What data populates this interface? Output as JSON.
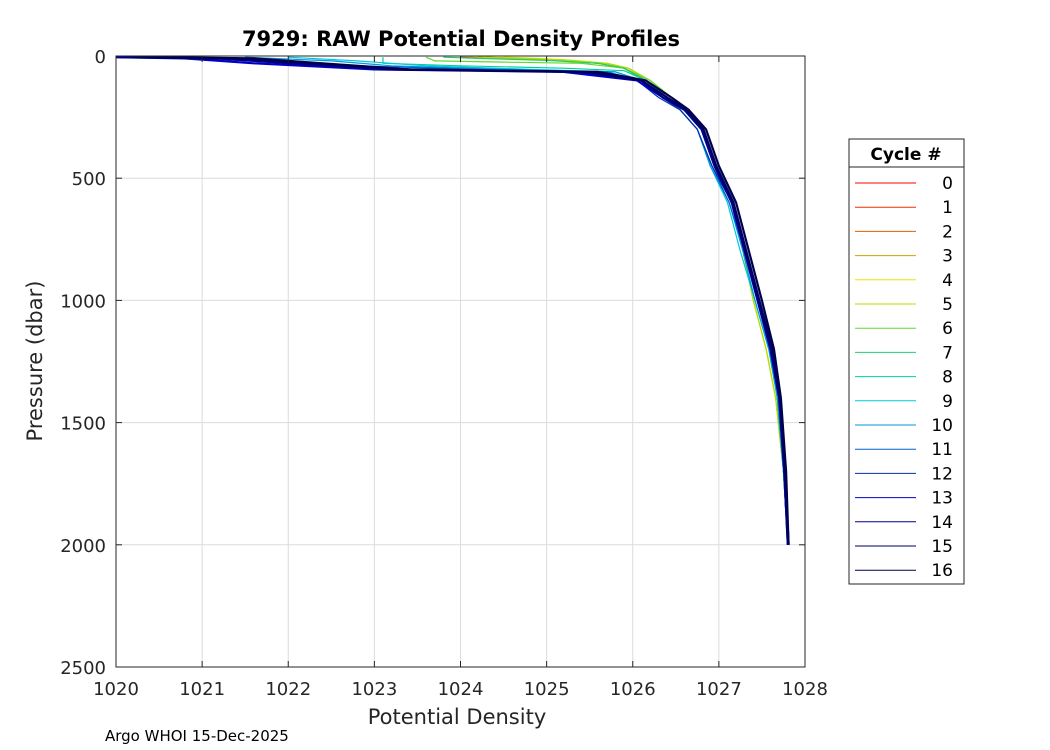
{
  "chart_data": {
    "type": "line",
    "title": "7929: RAW Potential Density Profiles",
    "xlabel": "Potential Density",
    "ylabel": "Pressure (dbar)",
    "xlim": [
      1020,
      1028
    ],
    "ylim": [
      0,
      2500
    ],
    "y_reversed": true,
    "grid": true,
    "x_ticks": [
      "1020",
      "1021",
      "1022",
      "1023",
      "1024",
      "1025",
      "1026",
      "1027",
      "1028"
    ],
    "y_ticks": [
      "0",
      "500",
      "1000",
      "1500",
      "2000",
      "2500"
    ],
    "legend": {
      "title": "Cycle #",
      "placement": "right-outside"
    },
    "footer": "Argo WHOI 15-Dec-2025",
    "series": [
      {
        "name": "0",
        "color": "#ff0000",
        "x": [
          1024.2,
          1024.6,
          1025.2,
          1025.6,
          1025.9,
          1026.15,
          1026.4,
          1026.6,
          1026.8,
          1026.95,
          1027.15,
          1027.3,
          1027.45,
          1027.6,
          1027.68,
          1027.75,
          1027.8
        ],
        "y": [
          5,
          10,
          18,
          30,
          50,
          100,
          170,
          220,
          300,
          450,
          600,
          800,
          1000,
          1200,
          1400,
          1700,
          2000
        ]
      },
      {
        "name": "1",
        "color": "#f03000",
        "x": [
          1024.0,
          1024.5,
          1025.1,
          1025.6,
          1025.9,
          1026.15,
          1026.4,
          1026.6,
          1026.8,
          1026.95,
          1027.15,
          1027.3,
          1027.45,
          1027.6,
          1027.68,
          1027.75,
          1027.8
        ],
        "y": [
          5,
          10,
          18,
          30,
          50,
          100,
          170,
          220,
          300,
          450,
          600,
          800,
          1000,
          1200,
          1400,
          1700,
          2000
        ]
      },
      {
        "name": "2",
        "color": "#e06000",
        "x": [
          1024.3,
          1024.7,
          1025.2,
          1025.7,
          1025.95,
          1026.2,
          1026.45,
          1026.6,
          1026.8,
          1026.95,
          1027.15,
          1027.3,
          1027.45,
          1027.6,
          1027.68,
          1027.75,
          1027.8
        ],
        "y": [
          5,
          10,
          18,
          30,
          50,
          100,
          170,
          220,
          300,
          450,
          600,
          800,
          1000,
          1200,
          1400,
          1700,
          2000
        ]
      },
      {
        "name": "3",
        "color": "#d0a000",
        "x": [
          1024.1,
          1024.6,
          1025.1,
          1025.6,
          1025.9,
          1026.15,
          1026.45,
          1026.6,
          1026.8,
          1026.95,
          1027.15,
          1027.28,
          1027.4,
          1027.55,
          1027.66,
          1027.75,
          1027.8
        ],
        "y": [
          5,
          10,
          18,
          30,
          50,
          100,
          170,
          220,
          300,
          450,
          600,
          800,
          1000,
          1200,
          1400,
          1700,
          2000
        ]
      },
      {
        "name": "4",
        "color": "#e8e800",
        "x": [
          1024.5,
          1024.9,
          1025.3,
          1025.7,
          1025.95,
          1026.2,
          1026.45,
          1026.6,
          1026.8,
          1026.95,
          1027.15,
          1027.28,
          1027.4,
          1027.55,
          1027.66,
          1027.75,
          1027.8
        ],
        "y": [
          5,
          10,
          18,
          30,
          50,
          100,
          170,
          220,
          300,
          450,
          600,
          800,
          1000,
          1200,
          1400,
          1700,
          2000
        ]
      },
      {
        "name": "5",
        "color": "#b0e000",
        "x": [
          1024.2,
          1024.8,
          1025.3,
          1025.7,
          1025.95,
          1026.2,
          1026.45,
          1026.6,
          1026.8,
          1026.95,
          1027.15,
          1027.28,
          1027.4,
          1027.55,
          1027.66,
          1027.75,
          1027.8
        ],
        "y": [
          5,
          10,
          18,
          30,
          50,
          100,
          170,
          220,
          300,
          450,
          600,
          800,
          1000,
          1200,
          1400,
          1700,
          2000
        ]
      },
      {
        "name": "6",
        "color": "#60d830",
        "x": [
          1023.6,
          1023.7,
          1024.5,
          1025.4,
          1025.9,
          1026.2,
          1026.45,
          1026.6,
          1026.8,
          1026.95,
          1027.15,
          1027.3,
          1027.45,
          1027.6,
          1027.68,
          1027.75,
          1027.8
        ],
        "y": [
          5,
          20,
          25,
          30,
          50,
          100,
          170,
          220,
          300,
          450,
          600,
          800,
          1000,
          1200,
          1400,
          1700,
          2000
        ]
      },
      {
        "name": "7",
        "color": "#20d070",
        "x": [
          1023.8,
          1024.2,
          1025.0,
          1025.6,
          1025.9,
          1026.15,
          1026.45,
          1026.6,
          1026.8,
          1026.95,
          1027.15,
          1027.3,
          1027.45,
          1027.6,
          1027.68,
          1027.75,
          1027.8
        ],
        "y": [
          5,
          10,
          18,
          30,
          50,
          100,
          170,
          220,
          300,
          450,
          600,
          800,
          1000,
          1200,
          1400,
          1700,
          2000
        ]
      },
      {
        "name": "8",
        "color": "#00d0a0",
        "x": [
          1023.1,
          1023.1,
          1024.0,
          1025.2,
          1025.9,
          1026.15,
          1026.4,
          1026.6,
          1026.8,
          1026.95,
          1027.15,
          1027.3,
          1027.45,
          1027.6,
          1027.68,
          1027.75,
          1027.8
        ],
        "y": [
          5,
          30,
          40,
          50,
          60,
          100,
          170,
          220,
          300,
          450,
          600,
          800,
          1000,
          1200,
          1400,
          1700,
          2000
        ]
      },
      {
        "name": "9",
        "color": "#00c8d8",
        "x": [
          1022.0,
          1022.8,
          1023.6,
          1024.8,
          1025.8,
          1026.1,
          1026.35,
          1026.55,
          1026.75,
          1026.9,
          1027.1,
          1027.25,
          1027.42,
          1027.58,
          1027.68,
          1027.75,
          1027.8
        ],
        "y": [
          5,
          20,
          40,
          55,
          65,
          100,
          170,
          220,
          300,
          450,
          600,
          800,
          1000,
          1200,
          1400,
          1700,
          2000
        ]
      },
      {
        "name": "10",
        "color": "#0098e0",
        "x": [
          1021.5,
          1022.5,
          1023.2,
          1024.5,
          1025.8,
          1026.1,
          1026.35,
          1026.55,
          1026.75,
          1026.9,
          1027.12,
          1027.28,
          1027.42,
          1027.58,
          1027.68,
          1027.75,
          1027.8
        ],
        "y": [
          5,
          20,
          40,
          55,
          65,
          100,
          170,
          220,
          300,
          450,
          600,
          800,
          1000,
          1200,
          1400,
          1700,
          2000
        ]
      },
      {
        "name": "11",
        "color": "#0060d0",
        "x": [
          1020.8,
          1021.8,
          1022.8,
          1024.2,
          1025.7,
          1026.1,
          1026.35,
          1026.55,
          1026.75,
          1026.92,
          1027.12,
          1027.3,
          1027.45,
          1027.6,
          1027.7,
          1027.76,
          1027.8
        ],
        "y": [
          5,
          20,
          40,
          55,
          65,
          100,
          170,
          220,
          300,
          450,
          600,
          800,
          1000,
          1200,
          1400,
          1700,
          2000
        ]
      },
      {
        "name": "12",
        "color": "#0030b0",
        "x": [
          1020.0,
          1021.0,
          1022.0,
          1023.5,
          1025.5,
          1026.05,
          1026.3,
          1026.55,
          1026.75,
          1026.92,
          1027.15,
          1027.3,
          1027.45,
          1027.6,
          1027.7,
          1027.76,
          1027.8
        ],
        "y": [
          5,
          10,
          30,
          55,
          65,
          100,
          170,
          220,
          300,
          450,
          600,
          800,
          1000,
          1200,
          1400,
          1700,
          2000
        ]
      },
      {
        "name": "13",
        "color": "#0000c8",
        "x": [
          1020.0,
          1020.8,
          1021.6,
          1023.0,
          1025.2,
          1026.05,
          1026.35,
          1026.6,
          1026.8,
          1026.95,
          1027.15,
          1027.3,
          1027.45,
          1027.6,
          1027.7,
          1027.76,
          1027.8
        ],
        "y": [
          5,
          10,
          30,
          55,
          65,
          100,
          170,
          220,
          300,
          450,
          600,
          800,
          1000,
          1200,
          1400,
          1700,
          2000
        ]
      },
      {
        "name": "14",
        "color": "#000090",
        "x": [
          1020.0,
          1021.2,
          1022.0,
          1023.2,
          1025.4,
          1026.1,
          1026.35,
          1026.6,
          1026.8,
          1026.95,
          1027.15,
          1027.3,
          1027.45,
          1027.6,
          1027.7,
          1027.76,
          1027.8
        ],
        "y": [
          5,
          10,
          30,
          55,
          65,
          100,
          170,
          220,
          300,
          450,
          600,
          800,
          1000,
          1200,
          1400,
          1700,
          2000
        ]
      },
      {
        "name": "15",
        "color": "#000060",
        "x": [
          1020.2,
          1021.4,
          1022.2,
          1023.3,
          1025.5,
          1026.1,
          1026.4,
          1026.62,
          1026.82,
          1026.97,
          1027.17,
          1027.32,
          1027.47,
          1027.62,
          1027.71,
          1027.77,
          1027.81
        ],
        "y": [
          5,
          10,
          30,
          55,
          65,
          100,
          170,
          220,
          300,
          450,
          600,
          800,
          1000,
          1200,
          1400,
          1700,
          2000
        ]
      },
      {
        "name": "16",
        "color": "#000050",
        "x": [
          1020.5,
          1021.6,
          1022.4,
          1023.4,
          1025.6,
          1026.15,
          1026.45,
          1026.65,
          1026.85,
          1027.0,
          1027.2,
          1027.35,
          1027.5,
          1027.64,
          1027.72,
          1027.78,
          1027.81
        ],
        "y": [
          5,
          10,
          30,
          55,
          65,
          100,
          170,
          220,
          300,
          450,
          600,
          800,
          1000,
          1200,
          1400,
          1700,
          2000
        ]
      }
    ]
  }
}
